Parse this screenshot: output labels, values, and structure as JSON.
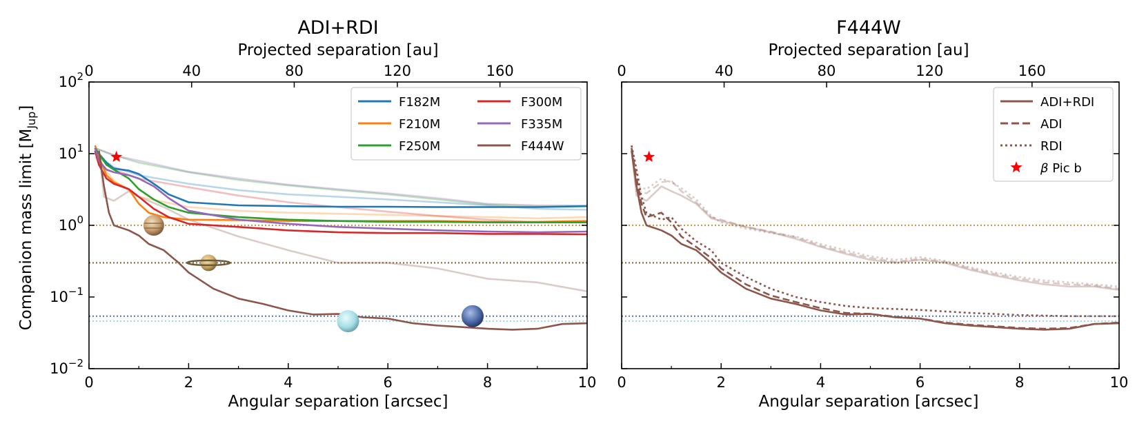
{
  "chart_data": [
    {
      "type": "line",
      "title": "ADI+RDI",
      "xlabel": "Angular separation [arcsec]",
      "x2label": "Projected separation [au]",
      "ylabel_main": "Companion mass limit [M",
      "ylabel_sub": "Jup",
      "ylabel_end": "]",
      "xlim": [
        0,
        10
      ],
      "ylim_log10": [
        -2,
        2
      ],
      "x_ticks": [
        "0",
        "2",
        "4",
        "6",
        "8",
        "10"
      ],
      "x2_ticks": [
        "0",
        "40",
        "80",
        "120",
        "160"
      ],
      "x2_tick_positions_arcsec": [
        0,
        2.06,
        4.12,
        6.19,
        8.25
      ],
      "y_ticks": [
        {
          "base": "10",
          "exp": "−2"
        },
        {
          "base": "10",
          "exp": "−1"
        },
        {
          "base": "10",
          "exp": "0"
        },
        {
          "base": "10",
          "exp": "1"
        },
        {
          "base": "10",
          "exp": "2"
        }
      ],
      "legend_position": "upper-right",
      "legend": [
        {
          "label": "F182M",
          "color": "#1f77b4"
        },
        {
          "label": "F210M",
          "color": "#ff7f0e"
        },
        {
          "label": "F250M",
          "color": "#2ca02c"
        },
        {
          "label": "F300M",
          "color": "#d62728"
        },
        {
          "label": "F335M",
          "color": "#9467bd"
        },
        {
          "label": "F444W",
          "color": "#8c564b"
        }
      ],
      "reference_lines": [
        {
          "name": "jupiter-mass",
          "y": 1.0,
          "color": "#c79b4a"
        },
        {
          "name": "saturn-mass",
          "y": 0.3,
          "color": "#8a7040"
        },
        {
          "name": "neptune-mass",
          "y": 0.054,
          "color": "#5b7ab8"
        },
        {
          "name": "uranus-mass",
          "y": 0.046,
          "color": "#9fd8e0"
        }
      ],
      "planets": [
        {
          "name": "jupiter",
          "x": 1.3,
          "y": 1.0
        },
        {
          "name": "saturn",
          "x": 2.4,
          "y": 0.3
        },
        {
          "name": "uranus",
          "x": 5.2,
          "y": 0.046
        },
        {
          "name": "neptune",
          "x": 7.7,
          "y": 0.054
        }
      ],
      "marker": {
        "name": "beta-pic-b",
        "x": 0.55,
        "y": 9.0,
        "color": "#ff0000"
      },
      "series": [
        {
          "name": "F182M",
          "color": "#1f77b4",
          "opacity": 1,
          "x": [
            0.12,
            0.2,
            0.35,
            0.5,
            0.8,
            1.0,
            1.3,
            1.6,
            2.0,
            3.0,
            4.0,
            5.0,
            6.0,
            7.0,
            8.0,
            9.0,
            10.0
          ],
          "y": [
            12,
            10,
            7.5,
            6.2,
            5.8,
            5.2,
            3.8,
            2.7,
            2.1,
            1.9,
            1.85,
            1.82,
            1.82,
            1.8,
            1.8,
            1.8,
            1.85
          ]
        },
        {
          "name": "F210M",
          "color": "#ff7f0e",
          "opacity": 1,
          "x": [
            0.12,
            0.2,
            0.35,
            0.5,
            0.8,
            1.0,
            1.2,
            1.5,
            2.0,
            3.0,
            4.0,
            5.0,
            6.0,
            7.0,
            8.0,
            9.0,
            10.0
          ],
          "y": [
            13,
            9,
            5,
            4,
            3.2,
            2.0,
            1.5,
            1.3,
            1.2,
            1.18,
            1.15,
            1.15,
            1.15,
            1.15,
            1.12,
            1.12,
            1.15
          ]
        },
        {
          "name": "F250M",
          "color": "#2ca02c",
          "opacity": 1,
          "x": [
            0.12,
            0.2,
            0.35,
            0.5,
            0.8,
            1.0,
            1.3,
            1.6,
            2.0,
            3.0,
            4.0,
            5.0,
            6.0,
            7.0,
            8.0,
            9.0,
            10.0
          ],
          "y": [
            12,
            10,
            7,
            6,
            4.5,
            3.2,
            2.3,
            1.8,
            1.5,
            1.3,
            1.2,
            1.15,
            1.12,
            1.12,
            1.1,
            1.1,
            1.1
          ]
        },
        {
          "name": "F300M",
          "color": "#d62728",
          "opacity": 1,
          "x": [
            0.12,
            0.2,
            0.35,
            0.5,
            0.8,
            1.0,
            1.3,
            1.6,
            2.0,
            3.0,
            4.0,
            5.0,
            6.0,
            7.0,
            8.0,
            9.0,
            10.0
          ],
          "y": [
            11,
            7,
            4.5,
            3.8,
            3.2,
            2.5,
            1.7,
            1.3,
            1.05,
            0.95,
            0.85,
            0.8,
            0.78,
            0.78,
            0.76,
            0.76,
            0.75
          ]
        },
        {
          "name": "F335M",
          "color": "#9467bd",
          "opacity": 1,
          "x": [
            0.12,
            0.2,
            0.35,
            0.5,
            0.8,
            1.0,
            1.3,
            1.6,
            2.0,
            3.0,
            4.0,
            5.0,
            6.0,
            7.0,
            8.0,
            9.0,
            10.0
          ],
          "y": [
            12,
            8,
            6,
            5.5,
            5,
            4.5,
            3.5,
            2.4,
            1.6,
            1.2,
            1.05,
            0.95,
            0.9,
            0.85,
            0.82,
            0.8,
            0.82
          ]
        },
        {
          "name": "F444W",
          "color": "#8c564b",
          "opacity": 1,
          "x": [
            0.2,
            0.3,
            0.4,
            0.5,
            0.8,
            1.0,
            1.2,
            1.5,
            1.8,
            2.0,
            2.5,
            3.0,
            3.5,
            4.0,
            4.5,
            5.0,
            5.5,
            6.0,
            6.5,
            7.0,
            7.5,
            8.0,
            8.5,
            9.0,
            9.5,
            10.0
          ],
          "y": [
            11,
            3.5,
            1.5,
            1.0,
            0.85,
            0.72,
            0.55,
            0.45,
            0.3,
            0.22,
            0.13,
            0.095,
            0.08,
            0.065,
            0.057,
            0.058,
            0.052,
            0.05,
            0.043,
            0.04,
            0.038,
            0.036,
            0.035,
            0.036,
            0.042,
            0.043
          ]
        },
        {
          "name": "F182M-faint",
          "color": "#1f77b4",
          "opacity": 0.3,
          "x": [
            0.12,
            0.5,
            1.0,
            2.0,
            3.0,
            4.0,
            5.0,
            6.0,
            7.0,
            8.0,
            9.0,
            10.0
          ],
          "y": [
            10,
            6.5,
            5,
            3.8,
            3.1,
            2.7,
            2.5,
            2.3,
            2.1,
            1.9,
            1.7,
            1.65
          ]
        },
        {
          "name": "F210M-faint",
          "color": "#ff7f0e",
          "opacity": 0.3,
          "x": [
            0.12,
            0.5,
            1.0,
            2.0,
            3.0,
            4.0,
            5.0,
            6.0,
            7.0,
            8.0,
            9.0,
            10.0
          ],
          "y": [
            9,
            4.2,
            2.5,
            1.8,
            1.6,
            1.5,
            1.45,
            1.4,
            1.35,
            1.3,
            1.25,
            1.3
          ]
        },
        {
          "name": "F250M-faint",
          "color": "#2ca02c",
          "opacity": 0.3,
          "x": [
            0.12,
            0.5,
            1.0,
            2.0,
            3.0,
            4.0,
            5.0,
            6.0,
            7.0,
            8.0,
            9.0,
            10.0
          ],
          "y": [
            12,
            9.5,
            7.5,
            5.5,
            4.3,
            3.6,
            3.1,
            2.7,
            2.3,
            1.95,
            1.85,
            1.85
          ]
        },
        {
          "name": "F300M-faint",
          "color": "#d62728",
          "opacity": 0.3,
          "x": [
            0.12,
            0.5,
            1.0,
            2.0,
            3.0,
            4.0,
            5.0,
            6.0,
            7.0,
            8.0,
            9.0,
            10.0
          ],
          "y": [
            10,
            6,
            4.5,
            3.4,
            2.6,
            2.1,
            1.8,
            1.55,
            1.35,
            1.2,
            1.1,
            1.1
          ]
        },
        {
          "name": "F335M-faint",
          "color": "#9467bd",
          "opacity": 0.3,
          "x": [
            0.12,
            0.5,
            1.0,
            2.0,
            3.0,
            4.0,
            5.0,
            6.0,
            7.0,
            8.0,
            9.0,
            10.0
          ],
          "y": [
            12,
            9.5,
            8,
            5.6,
            4.5,
            3.7,
            3.2,
            2.8,
            2.4,
            2.0,
            1.9,
            1.9
          ]
        },
        {
          "name": "F444W-faint",
          "color": "#8c564b",
          "opacity": 0.3,
          "x": [
            0.2,
            0.3,
            0.5,
            0.8,
            1.0,
            1.5,
            2.0,
            3.0,
            4.0,
            5.0,
            6.0,
            7.0,
            8.0,
            9.0,
            10.0
          ],
          "y": [
            11,
            2.5,
            2.2,
            3.0,
            2.5,
            1.8,
            1.2,
            0.7,
            0.45,
            0.3,
            0.3,
            0.25,
            0.18,
            0.16,
            0.12
          ]
        }
      ]
    },
    {
      "type": "line",
      "title": "F444W",
      "xlabel": "Angular separation [arcsec]",
      "x2label": "Projected separation [au]",
      "xlim": [
        0,
        10
      ],
      "ylim_log10": [
        -2,
        2
      ],
      "x_ticks": [
        "0",
        "2",
        "4",
        "6",
        "8",
        "10"
      ],
      "x2_ticks": [
        "0",
        "40",
        "80",
        "120",
        "160"
      ],
      "x2_tick_positions_arcsec": [
        0,
        2.06,
        4.12,
        6.19,
        8.25
      ],
      "legend_position": "upper-right",
      "legend": [
        {
          "label": "ADI+RDI",
          "style": "solid",
          "color": "#8c564b"
        },
        {
          "label": "ADI",
          "style": "dashed",
          "color": "#8c564b"
        },
        {
          "label": "RDI",
          "style": "dotted",
          "color": "#8c564b"
        },
        {
          "label": "Pic b",
          "prefix": "β",
          "style": "star",
          "color": "#ff0000"
        }
      ],
      "reference_lines": [
        {
          "name": "jupiter-mass",
          "y": 1.0,
          "color": "#c79b4a"
        },
        {
          "name": "saturn-mass",
          "y": 0.3,
          "color": "#8a7040"
        },
        {
          "name": "neptune-mass",
          "y": 0.054,
          "color": "#5b7ab8"
        },
        {
          "name": "uranus-mass",
          "y": 0.046,
          "color": "#9fd8e0"
        }
      ],
      "marker": {
        "name": "beta-pic-b",
        "x": 0.55,
        "y": 9.0,
        "color": "#ff0000"
      },
      "series": [
        {
          "name": "ADI+RDI",
          "color": "#8c564b",
          "style": "solid",
          "opacity": 1,
          "x": [
            0.2,
            0.3,
            0.4,
            0.5,
            0.8,
            1.0,
            1.2,
            1.5,
            1.8,
            2.0,
            2.5,
            3.0,
            3.5,
            4.0,
            4.5,
            5.0,
            5.5,
            6.0,
            6.5,
            7.0,
            7.5,
            8.0,
            8.5,
            9.0,
            9.5,
            10.0
          ],
          "y": [
            11,
            3.5,
            1.5,
            1.0,
            0.85,
            0.72,
            0.55,
            0.45,
            0.3,
            0.22,
            0.13,
            0.095,
            0.08,
            0.065,
            0.057,
            0.058,
            0.052,
            0.05,
            0.043,
            0.04,
            0.038,
            0.036,
            0.035,
            0.036,
            0.042,
            0.043
          ]
        },
        {
          "name": "ADI",
          "color": "#8c564b",
          "style": "dashed",
          "opacity": 1,
          "x": [
            0.2,
            0.3,
            0.4,
            0.5,
            0.8,
            1.0,
            1.2,
            1.5,
            1.8,
            2.0,
            2.5,
            3.0,
            3.5,
            4.0,
            4.5,
            5.0,
            5.5,
            6.0,
            6.5,
            7.0,
            7.5,
            8.0,
            8.5,
            9.0,
            9.5,
            10.0
          ],
          "y": [
            12,
            4.5,
            2.0,
            1.3,
            1.5,
            1.1,
            0.7,
            0.5,
            0.35,
            0.25,
            0.15,
            0.105,
            0.085,
            0.07,
            0.06,
            0.058,
            0.053,
            0.05,
            0.044,
            0.041,
            0.039,
            0.037,
            0.036,
            0.037,
            0.042,
            0.044
          ]
        },
        {
          "name": "RDI",
          "color": "#8c564b",
          "style": "dotted",
          "opacity": 1,
          "x": [
            0.2,
            0.3,
            0.4,
            0.5,
            0.8,
            1.0,
            1.2,
            1.5,
            1.8,
            2.0,
            2.5,
            3.0,
            3.5,
            4.0,
            4.5,
            5.0,
            5.5,
            6.0,
            6.5,
            7.0,
            7.5,
            8.0,
            8.5,
            9.0,
            9.5,
            10.0
          ],
          "y": [
            13,
            6,
            2.5,
            1.5,
            1.2,
            1.3,
            0.9,
            0.6,
            0.45,
            0.3,
            0.19,
            0.13,
            0.1,
            0.085,
            0.075,
            0.07,
            0.068,
            0.066,
            0.063,
            0.06,
            0.058,
            0.056,
            0.055,
            0.054,
            0.054,
            0.054
          ]
        },
        {
          "name": "ADI+RDI-faint",
          "color": "#8c564b",
          "style": "solid",
          "opacity": 0.3,
          "x": [
            0.2,
            0.3,
            0.5,
            0.8,
            1.0,
            1.2,
            1.5,
            1.8,
            2.0,
            2.5,
            3.0,
            3.5,
            4.0,
            4.5,
            5.0,
            5.5,
            6.0,
            6.5,
            7.0,
            7.5,
            8.0,
            8.5,
            9.0,
            9.5,
            10.0
          ],
          "y": [
            11,
            2.6,
            2.2,
            3.5,
            3.0,
            2.6,
            2.0,
            1.25,
            1.15,
            0.95,
            0.8,
            0.65,
            0.5,
            0.4,
            0.33,
            0.3,
            0.33,
            0.3,
            0.24,
            0.2,
            0.17,
            0.15,
            0.14,
            0.14,
            0.125
          ]
        },
        {
          "name": "ADI-faint",
          "color": "#8c564b",
          "style": "dashed",
          "opacity": 0.3,
          "x": [
            0.2,
            0.3,
            0.5,
            0.8,
            1.0,
            1.2,
            1.5,
            1.8,
            2.0,
            2.5,
            3.0,
            3.5,
            4.0,
            4.5,
            5.0,
            5.5,
            6.0,
            6.5,
            7.0,
            7.5,
            8.0,
            8.5,
            9.0,
            9.5,
            10.0
          ],
          "y": [
            12,
            3.0,
            2.8,
            4.0,
            4.2,
            3.0,
            2.1,
            1.3,
            1.2,
            0.95,
            0.82,
            0.68,
            0.52,
            0.42,
            0.35,
            0.31,
            0.34,
            0.31,
            0.25,
            0.21,
            0.18,
            0.16,
            0.15,
            0.145,
            0.13
          ]
        },
        {
          "name": "RDI-faint",
          "color": "#8c564b",
          "style": "dotted",
          "opacity": 0.3,
          "x": [
            0.2,
            0.3,
            0.5,
            0.8,
            1.0,
            1.2,
            1.5,
            1.8,
            2.0,
            2.5,
            3.0,
            3.5,
            4.0,
            4.5,
            5.0,
            5.5,
            6.0,
            6.5,
            7.0,
            7.5,
            8.0,
            8.5,
            9.0,
            9.5,
            10.0
          ],
          "y": [
            13,
            3.5,
            3.2,
            4.5,
            4.0,
            3.3,
            2.3,
            1.35,
            1.1,
            0.9,
            0.78,
            0.7,
            0.55,
            0.45,
            0.37,
            0.33,
            0.36,
            0.32,
            0.26,
            0.22,
            0.19,
            0.17,
            0.16,
            0.15,
            0.14
          ]
        }
      ]
    }
  ]
}
